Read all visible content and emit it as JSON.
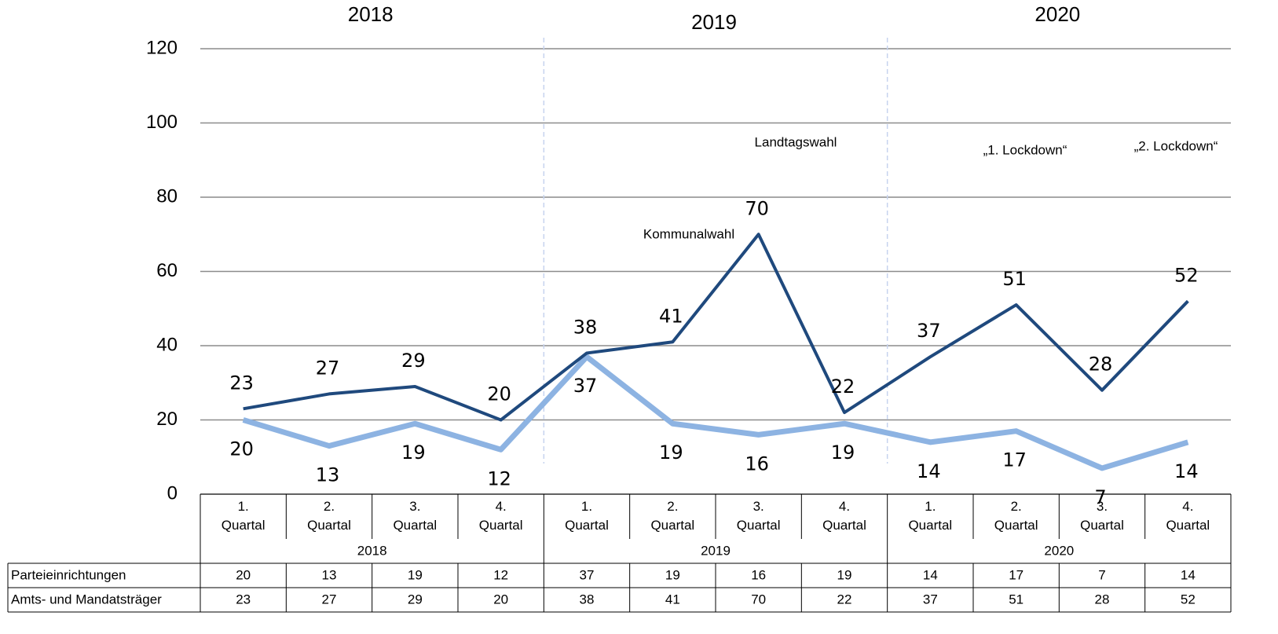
{
  "chart_data": {
    "type": "line",
    "groups": [
      "2018",
      "2019",
      "2020"
    ],
    "categories": [
      "1. Quartal",
      "2. Quartal",
      "3. Quartal",
      "4. Quartal",
      "1. Quartal",
      "2. Quartal",
      "3. Quartal",
      "4. Quartal",
      "1. Quartal",
      "2. Quartal",
      "3. Quartal",
      "4. Quartal"
    ],
    "series": [
      {
        "name": "Parteieinrichtungen",
        "color": "#8db3e2",
        "values": [
          20,
          13,
          19,
          12,
          37,
          19,
          16,
          19,
          14,
          17,
          7,
          14
        ]
      },
      {
        "name": "Amts- und Mandatsträger",
        "color": "#1f497d",
        "values": [
          23,
          27,
          29,
          20,
          38,
          41,
          70,
          22,
          37,
          51,
          28,
          52
        ]
      }
    ],
    "annotations": [
      "Kommunalwahl",
      "Landtagswahl",
      "„1. Lockdown“",
      "„2. Lockdown“"
    ],
    "ylim": [
      0,
      120
    ],
    "yticks": [
      0,
      20,
      40,
      60,
      80,
      100,
      120
    ],
    "grid": true
  }
}
